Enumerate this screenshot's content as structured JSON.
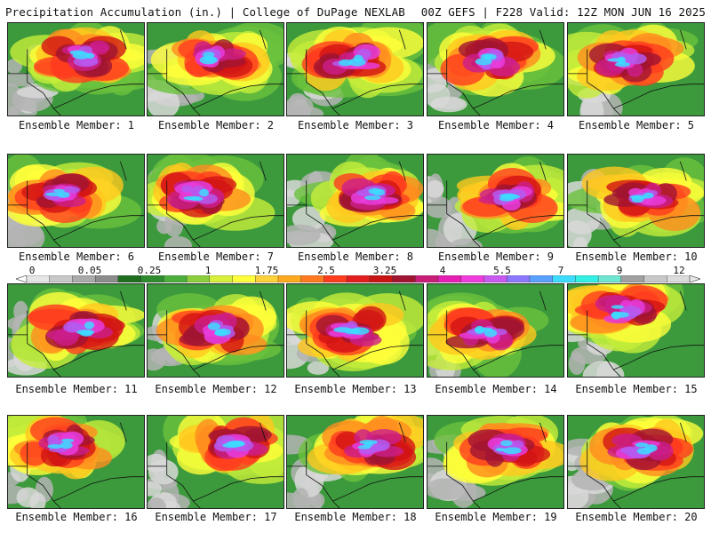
{
  "header": {
    "title_left": "Precipitation Accumulation (in.) | College of DuPage NEXLAB",
    "title_right": "00Z GEFS | F228 Valid: 12Z MON JUN 16 2025"
  },
  "colorbar": {
    "labels": [
      "0",
      "0.05",
      "0.25",
      "1",
      "1.75",
      "2.5",
      "3.25",
      "4",
      "5.5",
      "7",
      "9",
      "12"
    ],
    "colors": [
      "#e6e6e6",
      "#c8c8c8",
      "#aaaaaa",
      "#8c8c8c",
      "#1e6e1e",
      "#2e8b2e",
      "#4caf3c",
      "#8ccf3c",
      "#d9f03a",
      "#ffff3a",
      "#ffd23a",
      "#ffaa1e",
      "#ff7a1e",
      "#ff3c1e",
      "#e41e1e",
      "#c81414",
      "#a01432",
      "#c81e78",
      "#e61eb4",
      "#f03cdc",
      "#c85af0",
      "#8c78ff",
      "#5aa0ff",
      "#3cdcff",
      "#32f0e6",
      "#6ee6d2",
      "#a0a0a0",
      "#c8c8c8",
      "#dcdcdc"
    ]
  },
  "members": [
    {
      "label": "Ensemble Member: 1"
    },
    {
      "label": "Ensemble Member: 2"
    },
    {
      "label": "Ensemble Member: 3"
    },
    {
      "label": "Ensemble Member: 4"
    },
    {
      "label": "Ensemble Member: 5"
    },
    {
      "label": "Ensemble Member: 6"
    },
    {
      "label": "Ensemble Member: 7"
    },
    {
      "label": "Ensemble Member: 8"
    },
    {
      "label": "Ensemble Member: 9"
    },
    {
      "label": "Ensemble Member: 10"
    },
    {
      "label": "Ensemble Member: 11"
    },
    {
      "label": "Ensemble Member: 12"
    },
    {
      "label": "Ensemble Member: 13"
    },
    {
      "label": "Ensemble Member: 14"
    },
    {
      "label": "Ensemble Member: 15"
    },
    {
      "label": "Ensemble Member: 16"
    },
    {
      "label": "Ensemble Member: 17"
    },
    {
      "label": "Ensemble Member: 18"
    },
    {
      "label": "Ensemble Member: 19"
    },
    {
      "label": "Ensemble Member: 20"
    }
  ]
}
